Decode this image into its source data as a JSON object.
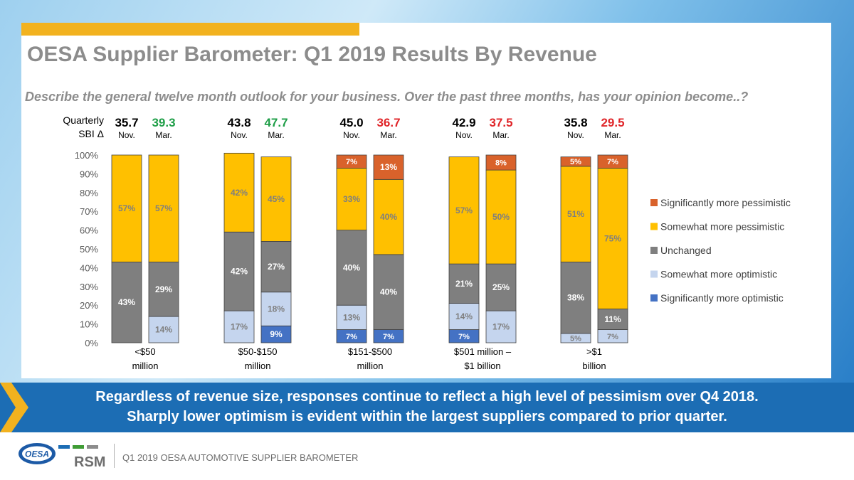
{
  "slide": {
    "title": "OESA Supplier Barometer: Q1 2019 Results By Revenue",
    "question": "Describe the general twelve month outlook for your business. Over the past three months, has your opinion become..?",
    "sbi_label_line1": "Quarterly",
    "sbi_label_line2": "SBI Δ"
  },
  "banner": {
    "line1": "Regardless of revenue size, responses continue to reflect a high level of pessimism over Q4 2018.",
    "line2": "Sharply lower optimism is evident within the largest suppliers compared to prior quarter."
  },
  "footer": {
    "text": "Q1 2019 OESA AUTOMOTIVE SUPPLIER BAROMETER",
    "logo_left": "OESA",
    "logo_right": "RSM"
  },
  "colors": {
    "sig_pess": "#d9622b",
    "some_pess": "#ffc000",
    "unchanged": "#7f7f7f",
    "some_opt": "#c5d5ee",
    "sig_opt": "#4472c4",
    "label_dark": "#7f7f7f",
    "label_light": "#ffffff",
    "sbi_green": "#1e9e47",
    "sbi_red": "#e0262a",
    "banner": "#1c6db4",
    "accent": "#f2b21f"
  },
  "chart_data": {
    "type": "bar",
    "stacked": true,
    "ylim": [
      0,
      100
    ],
    "yticks": [
      "0%",
      "10%",
      "20%",
      "30%",
      "40%",
      "50%",
      "60%",
      "70%",
      "80%",
      "90%",
      "100%"
    ],
    "legend_position": "right",
    "legend": [
      "Significantly more pessimistic",
      "Somewhat more pessimistic",
      "Unchanged",
      "Somewhat more optimistic",
      "Significantly more optimistic"
    ],
    "groups": [
      {
        "label_line1": "<$50",
        "label_line2": "million",
        "bars": [
          {
            "period": "Nov.",
            "sbi": "35.7",
            "sbi_color": "dark",
            "segments": [
              {
                "key": "unchanged",
                "value": 43,
                "label": "43%"
              },
              {
                "key": "some_pess",
                "value": 57,
                "label": "57%"
              }
            ]
          },
          {
            "period": "Mar.",
            "sbi": "39.3",
            "sbi_color": "green",
            "segments": [
              {
                "key": "some_opt",
                "value": 14,
                "label": "14%"
              },
              {
                "key": "unchanged",
                "value": 29,
                "label": "29%"
              },
              {
                "key": "some_pess",
                "value": 57,
                "label": "57%"
              }
            ]
          }
        ]
      },
      {
        "label_line1": "$50-$150",
        "label_line2": "million",
        "bars": [
          {
            "period": "Nov.",
            "sbi": "43.8",
            "sbi_color": "dark",
            "segments": [
              {
                "key": "some_opt",
                "value": 17,
                "label": "17%"
              },
              {
                "key": "unchanged",
                "value": 42,
                "label": "42%"
              },
              {
                "key": "some_pess",
                "value": 42,
                "label": "42%"
              }
            ]
          },
          {
            "period": "Mar.",
            "sbi": "47.7",
            "sbi_color": "green",
            "segments": [
              {
                "key": "sig_opt",
                "value": 9,
                "label": "9%"
              },
              {
                "key": "some_opt",
                "value": 18,
                "label": "18%"
              },
              {
                "key": "unchanged",
                "value": 27,
                "label": "27%"
              },
              {
                "key": "some_pess",
                "value": 45,
                "label": "45%"
              }
            ]
          }
        ]
      },
      {
        "label_line1": "$151-$500",
        "label_line2": "million",
        "bars": [
          {
            "period": "Nov.",
            "sbi": "45.0",
            "sbi_color": "dark",
            "segments": [
              {
                "key": "sig_opt",
                "value": 7,
                "label": "7%"
              },
              {
                "key": "some_opt",
                "value": 13,
                "label": "13%"
              },
              {
                "key": "unchanged",
                "value": 40,
                "label": "40%"
              },
              {
                "key": "some_pess",
                "value": 33,
                "label": "33%"
              },
              {
                "key": "sig_pess",
                "value": 7,
                "label": "7%"
              }
            ]
          },
          {
            "period": "Mar.",
            "sbi": "36.7",
            "sbi_color": "red",
            "segments": [
              {
                "key": "sig_opt",
                "value": 7,
                "label": "7%"
              },
              {
                "key": "unchanged",
                "value": 40,
                "label": "40%"
              },
              {
                "key": "some_pess",
                "value": 40,
                "label": "40%"
              },
              {
                "key": "sig_pess",
                "value": 13,
                "label": "13%"
              }
            ]
          }
        ]
      },
      {
        "label_line1": "$501 million –",
        "label_line2": "$1 billion",
        "bars": [
          {
            "period": "Nov.",
            "sbi": "42.9",
            "sbi_color": "dark",
            "segments": [
              {
                "key": "sig_opt",
                "value": 7,
                "label": "7%"
              },
              {
                "key": "some_opt",
                "value": 14,
                "label": "14%"
              },
              {
                "key": "unchanged",
                "value": 21,
                "label": "21%"
              },
              {
                "key": "some_pess",
                "value": 57,
                "label": "57%"
              }
            ]
          },
          {
            "period": "Mar.",
            "sbi": "37.5",
            "sbi_color": "red",
            "segments": [
              {
                "key": "some_opt",
                "value": 17,
                "label": "17%"
              },
              {
                "key": "unchanged",
                "value": 25,
                "label": "25%"
              },
              {
                "key": "some_pess",
                "value": 50,
                "label": "50%"
              },
              {
                "key": "sig_pess",
                "value": 8,
                "label": "8%"
              }
            ]
          }
        ]
      },
      {
        "label_line1": ">$1",
        "label_line2": "billion",
        "bars": [
          {
            "period": "Nov.",
            "sbi": "35.8",
            "sbi_color": "dark",
            "segments": [
              {
                "key": "some_opt",
                "value": 5,
                "label": "5%"
              },
              {
                "key": "unchanged",
                "value": 38,
                "label": "38%"
              },
              {
                "key": "some_pess",
                "value": 51,
                "label": "51%"
              },
              {
                "key": "sig_pess",
                "value": 5,
                "label": "5%"
              }
            ]
          },
          {
            "period": "Mar.",
            "sbi": "29.5",
            "sbi_color": "red",
            "segments": [
              {
                "key": "some_opt",
                "value": 7,
                "label": "7%"
              },
              {
                "key": "unchanged",
                "value": 11,
                "label": "11%"
              },
              {
                "key": "some_pess",
                "value": 75,
                "label": "75%"
              },
              {
                "key": "sig_pess",
                "value": 7,
                "label": "7%"
              }
            ]
          }
        ]
      }
    ]
  }
}
